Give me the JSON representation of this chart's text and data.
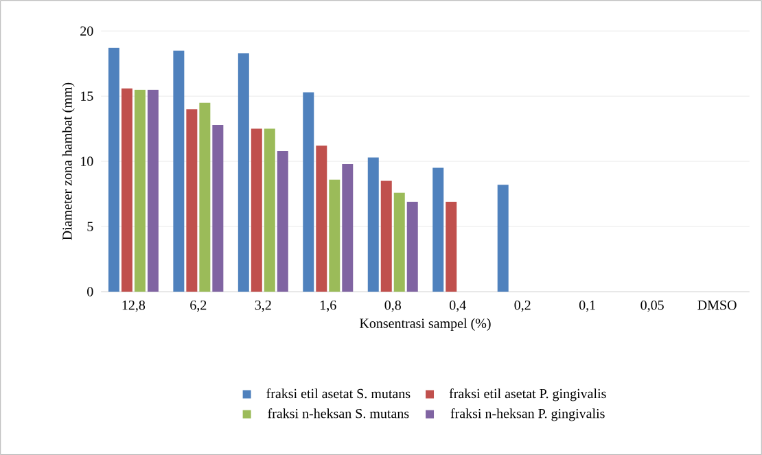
{
  "chart_data": {
    "type": "bar",
    "xlabel": "Konsentrasi sampel (%)",
    "ylabel": "Diameter zona hambat (mm)",
    "categories": [
      "12,8",
      "6,2",
      "3,2",
      "1,6",
      "0,8",
      "0,4",
      "0,2",
      "0,1",
      "0,05",
      "DMSO"
    ],
    "series": [
      {
        "name": "fraksi etil asetat S. mutans",
        "color": "#4f81bd",
        "values": [
          18.7,
          18.5,
          18.3,
          15.3,
          10.3,
          9.5,
          8.2,
          0,
          0,
          0
        ]
      },
      {
        "name": "fraksi etil asetat P. gingivalis",
        "color": "#c0504d",
        "values": [
          15.6,
          14.0,
          12.5,
          11.2,
          8.5,
          6.9,
          0,
          0,
          0,
          0
        ]
      },
      {
        "name": "fraksi n-heksan S. mutans",
        "color": "#9bbb59",
        "values": [
          15.5,
          14.5,
          12.5,
          8.6,
          7.6,
          0,
          0,
          0,
          0,
          0
        ]
      },
      {
        "name": "fraksi n-heksan P. gingivalis",
        "color": "#8064a2",
        "values": [
          15.5,
          12.8,
          10.8,
          9.8,
          6.9,
          0,
          0,
          0,
          0,
          0
        ]
      }
    ],
    "ylim": [
      0,
      20
    ],
    "yticks": [
      0,
      5,
      10,
      15,
      20
    ],
    "grid": "y",
    "legend": "bottom"
  }
}
